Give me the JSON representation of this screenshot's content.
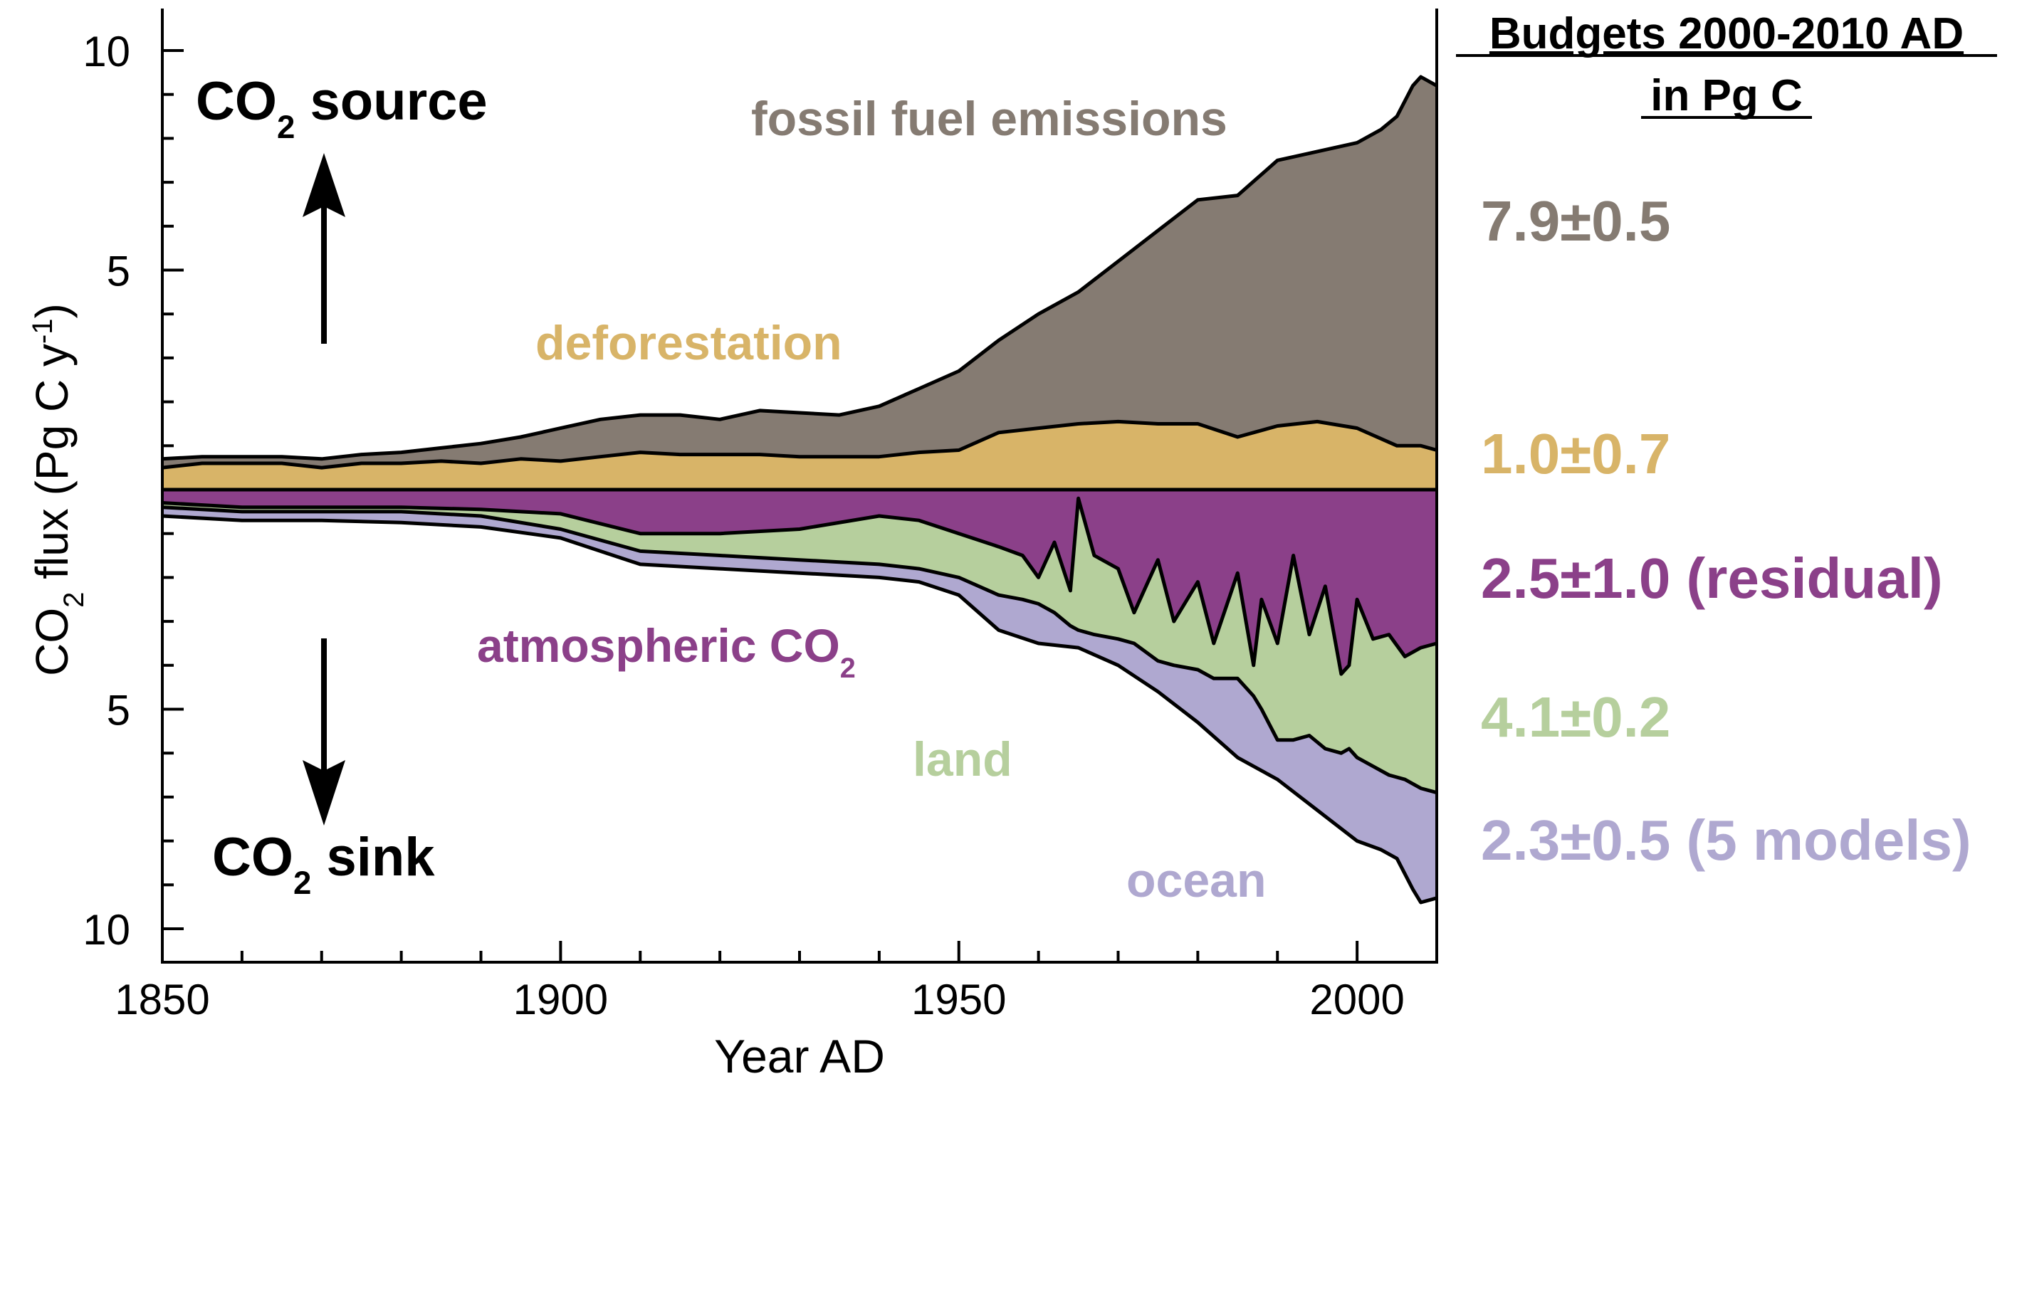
{
  "chart_data": {
    "type": "area",
    "title": "",
    "xlabel": "Year AD",
    "ylabel": {
      "pre": "CO",
      "sub": "2",
      "mid": " flux (Pg C y",
      "sup": "-1",
      "post": ")"
    },
    "xlim": [
      1850,
      2010
    ],
    "ylim_source": [
      0,
      10
    ],
    "ylim_sink": [
      0,
      10
    ],
    "x_ticks": [
      1850,
      1900,
      1950,
      2000
    ],
    "y_ticks_source": [
      5,
      10
    ],
    "y_ticks_sink": [
      5,
      10
    ],
    "annotations": {
      "source": {
        "pre": "CO",
        "sub": "2",
        "post": " source"
      },
      "sink": {
        "pre": "CO",
        "sub": "2",
        "post": " sink"
      },
      "fossil": "fossil fuel emissions",
      "deforestation": "deforestation",
      "atmospheric": {
        "pre": "atmospheric CO",
        "sub": "2"
      },
      "land": "land",
      "ocean": "ocean"
    },
    "budget_title": [
      "Budgets 2000-2010 AD",
      "in Pg C"
    ],
    "budgets": [
      {
        "name": "fossil",
        "text": "7.9±0.5",
        "color": "#857b72"
      },
      {
        "name": "deforestation",
        "text": "1.0±0.7",
        "color": "#d8b468"
      },
      {
        "name": "residual",
        "text": "2.5±1.0 (residual)",
        "color": "#8b4089"
      },
      {
        "name": "land",
        "text": "4.1±0.2",
        "color": "#b6cf9d"
      },
      {
        "name": "ocean",
        "text": "2.3±0.5 (5 models)",
        "color": "#afa8d0"
      }
    ],
    "colors": {
      "fossil": "#857b72",
      "deforestation": "#d8b468",
      "atmospheric": "#8b4089",
      "land": "#b6cf9d",
      "ocean": "#afa8d0",
      "line": "#000000"
    },
    "series": [
      {
        "name": "deforestation (source, cumulative top)",
        "years": [
          1850,
          1855,
          1860,
          1865,
          1870,
          1875,
          1880,
          1885,
          1890,
          1895,
          1900,
          1905,
          1910,
          1915,
          1920,
          1925,
          1930,
          1935,
          1940,
          1945,
          1950,
          1955,
          1960,
          1965,
          1970,
          1975,
          1980,
          1985,
          1990,
          1995,
          2000,
          2005,
          2008,
          2010
        ],
        "values": [
          0.5,
          0.6,
          0.6,
          0.6,
          0.5,
          0.6,
          0.6,
          0.65,
          0.6,
          0.7,
          0.65,
          0.75,
          0.85,
          0.8,
          0.8,
          0.8,
          0.75,
          0.75,
          0.75,
          0.85,
          0.9,
          1.3,
          1.4,
          1.5,
          1.55,
          1.5,
          1.5,
          1.2,
          1.45,
          1.55,
          1.4,
          1.0,
          1.0,
          0.9
        ]
      },
      {
        "name": "fossil fuel + deforestation (source, cumulative top)",
        "years": [
          1850,
          1855,
          1860,
          1865,
          1870,
          1875,
          1880,
          1885,
          1890,
          1895,
          1900,
          1905,
          1910,
          1915,
          1920,
          1925,
          1930,
          1935,
          1940,
          1945,
          1950,
          1955,
          1960,
          1965,
          1970,
          1975,
          1980,
          1985,
          1990,
          1995,
          2000,
          2003,
          2005,
          2007,
          2008,
          2010
        ],
        "values": [
          0.7,
          0.75,
          0.75,
          0.75,
          0.7,
          0.8,
          0.85,
          0.95,
          1.05,
          1.2,
          1.4,
          1.6,
          1.7,
          1.7,
          1.6,
          1.8,
          1.75,
          1.7,
          1.9,
          2.3,
          2.7,
          3.4,
          4.0,
          4.5,
          5.2,
          5.9,
          6.6,
          6.7,
          7.5,
          7.7,
          7.9,
          8.2,
          8.5,
          9.2,
          9.4,
          9.2
        ]
      },
      {
        "name": "atmospheric CO2 (sink, cumulative bottom)",
        "years": [
          1850,
          1860,
          1870,
          1880,
          1890,
          1900,
          1910,
          1920,
          1930,
          1940,
          1945,
          1950,
          1955,
          1958,
          1960,
          1962,
          1964,
          1965,
          1967,
          1970,
          1972,
          1975,
          1977,
          1980,
          1982,
          1985,
          1987,
          1988,
          1990,
          1992,
          1994,
          1996,
          1998,
          1999,
          2000,
          2002,
          2004,
          2006,
          2008,
          2010
        ],
        "values": [
          0.3,
          0.4,
          0.4,
          0.4,
          0.45,
          0.55,
          1.0,
          1.0,
          0.9,
          0.6,
          0.7,
          1.0,
          1.3,
          1.5,
          2.0,
          1.2,
          2.3,
          0.2,
          1.5,
          1.8,
          2.8,
          1.6,
          3.0,
          2.1,
          3.5,
          1.9,
          4.0,
          2.5,
          3.5,
          1.5,
          3.3,
          2.2,
          4.2,
          4.0,
          2.5,
          3.4,
          3.3,
          3.8,
          3.6,
          3.5
        ]
      },
      {
        "name": "atmosphere + land (sink, cumulative bottom)",
        "years": [
          1850,
          1860,
          1870,
          1880,
          1890,
          1900,
          1910,
          1920,
          1930,
          1940,
          1945,
          1950,
          1955,
          1958,
          1960,
          1962,
          1964,
          1965,
          1967,
          1970,
          1972,
          1975,
          1977,
          1980,
          1982,
          1985,
          1987,
          1988,
          1990,
          1992,
          1994,
          1996,
          1998,
          1999,
          2000,
          2002,
          2004,
          2006,
          2008,
          2010
        ],
        "values": [
          0.4,
          0.5,
          0.5,
          0.5,
          0.6,
          0.9,
          1.4,
          1.5,
          1.6,
          1.7,
          1.8,
          2.0,
          2.4,
          2.5,
          2.6,
          2.8,
          3.1,
          3.2,
          3.3,
          3.4,
          3.5,
          3.9,
          4.0,
          4.1,
          4.3,
          4.3,
          4.7,
          5.0,
          5.7,
          5.7,
          5.6,
          5.9,
          6.0,
          5.9,
          6.1,
          6.3,
          6.5,
          6.6,
          6.8,
          6.9
        ]
      },
      {
        "name": "atmosphere + land + ocean (sink, cumulative bottom)",
        "years": [
          1850,
          1860,
          1870,
          1880,
          1890,
          1900,
          1910,
          1920,
          1930,
          1940,
          1945,
          1950,
          1955,
          1960,
          1965,
          1970,
          1975,
          1980,
          1985,
          1990,
          1995,
          2000,
          2003,
          2005,
          2007,
          2008,
          2010
        ],
        "values": [
          0.6,
          0.7,
          0.7,
          0.75,
          0.85,
          1.1,
          1.7,
          1.8,
          1.9,
          2.0,
          2.1,
          2.4,
          3.2,
          3.5,
          3.6,
          4.0,
          4.6,
          5.3,
          6.1,
          6.6,
          7.3,
          8.0,
          8.2,
          8.4,
          9.1,
          9.4,
          9.3
        ]
      }
    ]
  }
}
